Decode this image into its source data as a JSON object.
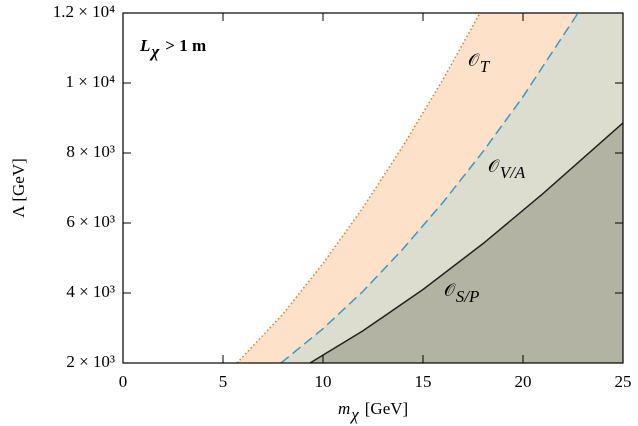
{
  "chart_data": {
    "type": "line",
    "xlabel": {
      "text": "m",
      "sub": "χ",
      "unit": "[GeV]"
    },
    "ylabel": "Λ [GeV]",
    "annotation": {
      "text": "L",
      "sub": "χ",
      "rest": "> 1 m"
    },
    "xlim": [
      0,
      25
    ],
    "xticks": [
      0,
      5,
      10,
      15,
      20,
      25
    ],
    "ylim": [
      2000,
      12000
    ],
    "yticks": [
      {
        "value": 2000,
        "label": "2 × 10³"
      },
      {
        "value": 4000,
        "label": "4 × 10³"
      },
      {
        "value": 6000,
        "label": "6 × 10³"
      },
      {
        "value": 8000,
        "label": "8 × 10³"
      },
      {
        "value": 10000,
        "label": "1 × 10⁴"
      },
      {
        "value": 12000,
        "label": "1.2 × 10⁴"
      }
    ],
    "series": [
      {
        "label": "𝒪",
        "label_sub": "T",
        "color": "#e8801c",
        "fill": "#fde1c8",
        "dash": "dotted",
        "x": [
          5.7,
          8,
          10,
          12,
          14,
          16,
          17.85
        ],
        "values": [
          2000,
          3400,
          4840,
          6440,
          8200,
          10100,
          12000
        ]
      },
      {
        "label": "𝒪",
        "label_sub": "V/A",
        "color": "#2a9fd0",
        "fill": "#dcdccf",
        "dash": "dashed",
        "x": [
          7.9,
          10,
          12,
          14,
          16,
          18,
          20,
          22.75
        ],
        "values": [
          2000,
          2980,
          4050,
          5260,
          6590,
          8040,
          9610,
          12000
        ]
      },
      {
        "label": "𝒪",
        "label_sub": "S/P",
        "color": "#222222",
        "fill": "#b3b3a4",
        "dash": "solid",
        "x": [
          9.35,
          12,
          15,
          18,
          21,
          25
        ],
        "values": [
          2000,
          2920,
          4100,
          5410,
          6840,
          8860
        ]
      }
    ]
  }
}
